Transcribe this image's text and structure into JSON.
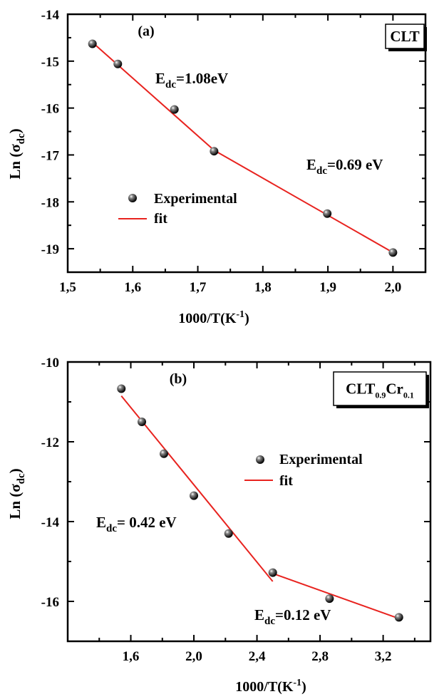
{
  "chart_data": [
    {
      "type": "scatter",
      "panel_label": "(a)",
      "sample_box": {
        "base": "CLT",
        "sub1": "",
        "el2": "",
        "sub2": ""
      },
      "ylabel": {
        "base": "Ln (σ",
        "sub": "dc",
        "tail": ")"
      },
      "xlabel": {
        "base": "1000/T(K",
        "sup": "-1",
        "tail": ")"
      },
      "xlim": [
        1.5,
        2.05
      ],
      "ylim": [
        -19.5,
        -14
      ],
      "x_ticks": [
        "1,5",
        "1,6",
        "1,7",
        "1,8",
        "1,9",
        "2,0"
      ],
      "x_tick_values": [
        1.5,
        1.6,
        1.7,
        1.8,
        1.9,
        2.0
      ],
      "y_ticks": [
        "-19",
        "-18",
        "-17",
        "-16",
        "-15",
        "-14"
      ],
      "y_tick_values": [
        -19,
        -18,
        -17,
        -16,
        -15,
        -14
      ],
      "series": [
        {
          "name": "Experimental",
          "x": [
            1.538,
            1.577,
            1.664,
            1.725,
            1.899,
            2.0
          ],
          "y": [
            -14.63,
            -15.06,
            -16.03,
            -16.92,
            -18.25,
            -19.08
          ]
        }
      ],
      "fit_lines": [
        {
          "name": "fit",
          "x": [
            1.538,
            1.725
          ],
          "y": [
            -14.6,
            -16.9
          ]
        },
        {
          "name": "fit",
          "x": [
            1.725,
            2.0
          ],
          "y": [
            -16.9,
            -19.08
          ]
        }
      ],
      "annotations": [
        {
          "base": "E",
          "sub": "dc",
          "tail": "=1.08eV"
        },
        {
          "base": "E",
          "sub": "dc",
          "tail": "=0.69 eV"
        }
      ],
      "legend": {
        "experimental": "Experimental",
        "fit": "fit"
      },
      "colors": {
        "fit": "#e8231f",
        "marker": "#1a1a1a",
        "axis": "#000000"
      }
    },
    {
      "type": "scatter",
      "panel_label": "(b)",
      "sample_box": {
        "base": "CLT",
        "sub1": "0.9",
        "el2": "Cr",
        "sub2": "0.1"
      },
      "ylabel": {
        "base": "Ln (σ",
        "sub": "dc",
        "tail": ")"
      },
      "xlabel": {
        "base": "1000/T(K",
        "sup": "-1",
        "tail": ")"
      },
      "xlim": [
        1.2,
        3.5
      ],
      "ylim": [
        -17,
        -10
      ],
      "x_ticks": [
        "1,6",
        "2,0",
        "2,4",
        "2,8",
        "3,2"
      ],
      "x_tick_values": [
        1.6,
        2.0,
        2.4,
        2.8,
        3.2
      ],
      "y_ticks": [
        "-16",
        "-14",
        "-12",
        "-10"
      ],
      "y_tick_values": [
        -16,
        -14,
        -12,
        -10
      ],
      "series": [
        {
          "name": "Experimental",
          "x": [
            1.54,
            1.67,
            1.81,
            2.0,
            2.22,
            2.5,
            2.86,
            3.3
          ],
          "y": [
            -10.67,
            -11.5,
            -12.3,
            -13.35,
            -14.3,
            -15.28,
            -15.93,
            -16.4
          ]
        }
      ],
      "fit_lines": [
        {
          "name": "fit",
          "x": [
            1.54,
            2.5
          ],
          "y": [
            -10.85,
            -15.5
          ]
        },
        {
          "name": "fit",
          "x": [
            2.5,
            3.3
          ],
          "y": [
            -15.3,
            -16.43
          ]
        }
      ],
      "annotations": [
        {
          "base": "E",
          "sub": "dc",
          "tail": "= 0.42 eV"
        },
        {
          "base": "E",
          "sub": "dc",
          "tail": "=0.12 eV"
        }
      ],
      "legend": {
        "experimental": "Experimental",
        "fit": "fit"
      },
      "colors": {
        "fit": "#e8231f",
        "marker": "#1a1a1a",
        "axis": "#000000"
      }
    }
  ]
}
